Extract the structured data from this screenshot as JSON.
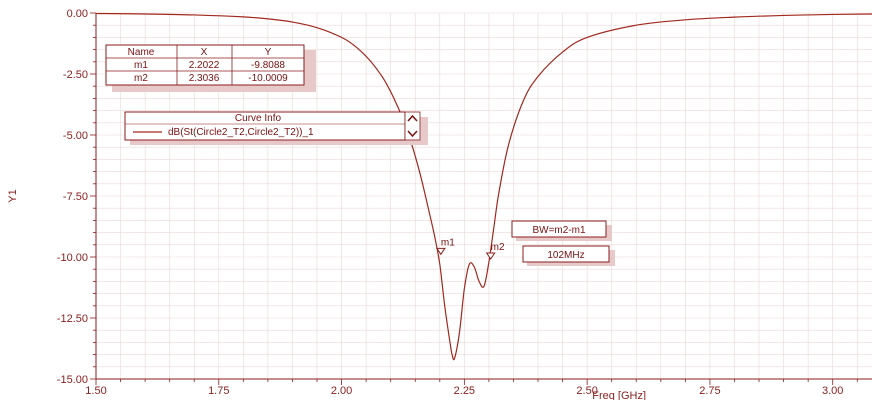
{
  "chart_data": {
    "type": "line",
    "xlabel": "Freq [GHz]",
    "ylabel": "Y1",
    "xlim": [
      1.5,
      3.08
    ],
    "ylim": [
      -15.0,
      0.0
    ],
    "x_ticks": [
      "1.50",
      "1.75",
      "2.00",
      "2.25",
      "2.50",
      "2.75",
      "3.00"
    ],
    "y_ticks": [
      "-15.00",
      "-12.50",
      "-10.00",
      "-7.50",
      "-5.00",
      "-2.50",
      "0.00"
    ],
    "grid": true,
    "series": [
      {
        "name": "dB(St(Circle2_T2,Circle2_T2))_1",
        "x": [
          1.5,
          1.6,
          1.7,
          1.8,
          1.85,
          1.9,
          1.95,
          2.0,
          2.03,
          2.06,
          2.09,
          2.12,
          2.14,
          2.16,
          2.18,
          2.19,
          2.2,
          2.21,
          2.22,
          2.225,
          2.23,
          2.24,
          2.25,
          2.26,
          2.27,
          2.28,
          2.29,
          2.3,
          2.31,
          2.32,
          2.34,
          2.37,
          2.4,
          2.45,
          2.5,
          2.6,
          2.7,
          2.8,
          2.9,
          3.0,
          3.08
        ],
        "y": [
          -0.02,
          -0.04,
          -0.08,
          -0.16,
          -0.24,
          -0.37,
          -0.6,
          -1.0,
          -1.4,
          -2.0,
          -2.85,
          -4.1,
          -5.2,
          -6.6,
          -8.3,
          -9.2,
          -10.3,
          -12.0,
          -13.4,
          -14.0,
          -14.15,
          -13.1,
          -11.3,
          -10.3,
          -10.4,
          -11.0,
          -11.2,
          -10.2,
          -8.8,
          -7.4,
          -5.4,
          -3.6,
          -2.6,
          -1.6,
          -1.0,
          -0.5,
          -0.28,
          -0.17,
          -0.1,
          -0.06,
          -0.04
        ]
      }
    ],
    "markers": [
      {
        "name": "m1",
        "x": 2.2022,
        "y": -9.8088
      },
      {
        "name": "m2",
        "x": 2.3036,
        "y": -10.0009
      }
    ],
    "marker_table": {
      "headers": [
        "Name",
        "X",
        "Y"
      ],
      "rows": [
        [
          "m1",
          "2.2022",
          "-9.8088"
        ],
        [
          "m2",
          "2.3036",
          "-10.0009"
        ]
      ]
    },
    "curve_info": {
      "title": "Curve Info",
      "entry": "dB(St(Circle2_T2,Circle2_T2))_1"
    },
    "annotations": [
      "BW=m2-m1",
      "102MHz"
    ]
  },
  "colors": {
    "curve": "#a0281e",
    "axis": "#8b1d1d",
    "grid": "#ead8d8",
    "box_border": "#8b1d1d",
    "box_shadow": "#e8c9c9"
  }
}
